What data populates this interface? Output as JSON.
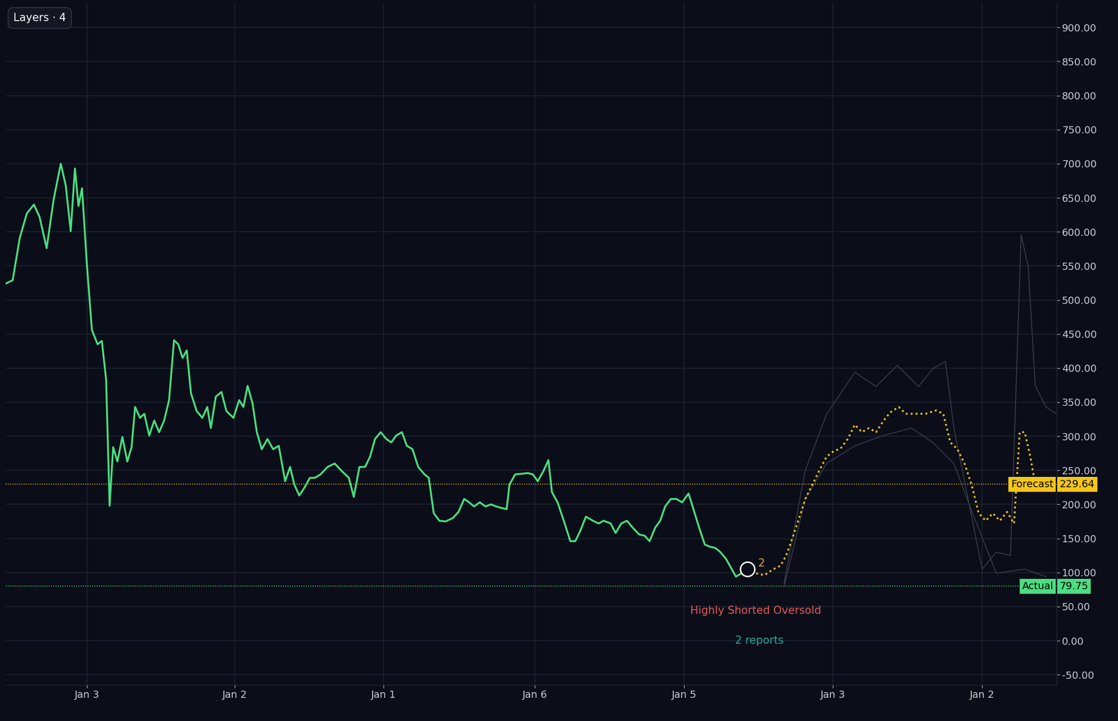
{
  "layers_button": "Layers · 4",
  "chart_data": {
    "type": "line",
    "grid": true,
    "xlim": [
      0,
      1485
    ],
    "xticks": [
      {
        "value": 115,
        "label": "Jan 3"
      },
      {
        "value": 324,
        "label": "Jan 2"
      },
      {
        "value": 534,
        "label": "Jan 1"
      },
      {
        "value": 748,
        "label": "Jan 6"
      },
      {
        "value": 959,
        "label": "Jan 5"
      },
      {
        "value": 1169,
        "label": "Jan 3"
      },
      {
        "value": 1380,
        "label": "Jan 2"
      }
    ],
    "ylim": [
      -65,
      935
    ],
    "yticks": [
      {
        "value": -50,
        "label": "-50.00"
      },
      {
        "value": 0,
        "label": "0.00"
      },
      {
        "value": 50,
        "label": "50.00"
      },
      {
        "value": 100,
        "label": "100.00"
      },
      {
        "value": 150,
        "label": "150.00"
      },
      {
        "value": 200,
        "label": "200.00"
      },
      {
        "value": 250,
        "label": "250.00"
      },
      {
        "value": 300,
        "label": "300.00"
      },
      {
        "value": 350,
        "label": "350.00"
      },
      {
        "value": 400,
        "label": "400.00"
      },
      {
        "value": 450,
        "label": "450.00"
      },
      {
        "value": 500,
        "label": "500.00"
      },
      {
        "value": 550,
        "label": "550.00"
      },
      {
        "value": 600,
        "label": "600.00"
      },
      {
        "value": 650,
        "label": "650.00"
      },
      {
        "value": 700,
        "label": "700.00"
      },
      {
        "value": 750,
        "label": "750.00"
      },
      {
        "value": 800,
        "label": "800.00"
      },
      {
        "value": 850,
        "label": "850.00"
      },
      {
        "value": 900,
        "label": "900.00"
      }
    ],
    "series": [
      {
        "color": "#3a3f4c",
        "line_style": "solid",
        "x": [
          1100,
          1130,
          1160,
          1200,
          1230,
          1260,
          1290,
          1310,
          1328,
          1340,
          1360,
          1380,
          1400,
          1420,
          1435,
          1445,
          1455,
          1470,
          1485
        ],
        "values": [
          84,
          250,
          332,
          394,
          373,
          404,
          373,
          399,
          410,
          312,
          208,
          105,
          130,
          125,
          596,
          549,
          374,
          343,
          333
        ]
      },
      {
        "color": "#3a3f4c",
        "line_style": "solid",
        "x": [
          1100,
          1130,
          1160,
          1200,
          1240,
          1280,
          1310,
          1340,
          1370,
          1400,
          1440,
          1470
        ],
        "values": [
          79,
          208,
          260,
          286,
          301,
          312,
          291,
          260,
          177,
          99,
          105,
          94
        ]
      },
      {
        "name": "Actual",
        "color": "#4ade80",
        "line_style": "solid",
        "x": [
          0,
          10,
          20,
          30,
          40,
          48,
          58,
          68,
          78,
          85,
          92,
          98,
          103,
          108,
          115,
          122,
          130,
          136,
          142,
          147,
          152,
          158,
          165,
          172,
          178,
          183,
          190,
          196,
          203,
          210,
          217,
          224,
          231,
          238,
          244,
          250,
          256,
          262,
          270,
          278,
          285,
          290,
          297,
          305,
          312,
          322,
          330,
          336,
          342,
          349,
          355,
          362,
          370,
          378,
          386,
          395,
          402,
          408,
          415,
          422,
          430,
          437,
          445,
          455,
          465,
          475,
          485,
          492,
          500,
          508,
          515,
          522,
          530,
          538,
          545,
          552,
          560,
          567,
          575,
          583,
          592,
          598,
          605,
          613,
          622,
          632,
          640,
          648,
          655,
          662,
          670,
          678,
          686,
          693,
          700,
          708,
          712,
          720,
          730,
          738,
          745,
          752,
          760,
          767,
          772,
          780,
          790,
          798,
          805,
          812,
          820,
          830,
          838,
          845,
          855,
          862,
          870,
          878,
          886,
          895,
          903,
          910,
          918,
          925,
          932,
          940,
          948,
          956,
          965,
          972,
          980,
          988,
          995,
          1003,
          1010,
          1018,
          1025,
          1032,
          1040,
          1048
        ],
        "values": [
          524,
          529,
          591,
          627,
          640,
          622,
          576,
          648,
          700,
          668,
          601,
          693,
          638,
          664,
          550,
          456,
          435,
          440,
          384,
          198,
          284,
          263,
          299,
          263,
          284,
          343,
          327,
          333,
          301,
          323,
          306,
          323,
          353,
          441,
          435,
          415,
          426,
          363,
          337,
          327,
          343,
          312,
          358,
          365,
          337,
          327,
          353,
          343,
          374,
          348,
          306,
          281,
          296,
          281,
          286,
          234,
          255,
          229,
          213,
          224,
          239,
          239,
          244,
          255,
          260,
          249,
          239,
          211,
          255,
          255,
          270,
          296,
          306,
          296,
          291,
          301,
          306,
          286,
          281,
          255,
          244,
          239,
          187,
          176,
          175,
          180,
          189,
          208,
          203,
          197,
          203,
          197,
          200,
          197,
          195,
          193,
          229,
          244,
          245,
          246,
          244,
          234,
          249,
          265,
          218,
          203,
          172,
          146,
          146,
          161,
          182,
          176,
          172,
          176,
          172,
          158,
          172,
          176,
          166,
          156,
          154,
          146,
          166,
          176,
          197,
          208,
          208,
          203,
          216,
          193,
          166,
          141,
          138,
          136,
          130,
          120,
          107,
          94,
          99,
          105
        ]
      },
      {
        "name": "Forecast",
        "color": "#f5c518",
        "line_style": "dotted",
        "x": [
          1048,
          1060,
          1072,
          1085,
          1095,
          1103,
          1112,
          1120,
          1130,
          1140,
          1150,
          1160,
          1170,
          1180,
          1190,
          1200,
          1210,
          1220,
          1230,
          1240,
          1250,
          1262,
          1272,
          1285,
          1300,
          1315,
          1325,
          1335,
          1345,
          1355,
          1365,
          1375,
          1385,
          1395,
          1405,
          1415,
          1425,
          1433,
          1440,
          1448,
          1455
        ],
        "values": [
          105,
          99,
          96,
          105,
          110,
          125,
          151,
          176,
          208,
          229,
          250,
          270,
          278,
          282,
          296,
          317,
          306,
          312,
          306,
          322,
          335,
          343,
          333,
          333,
          333,
          338,
          333,
          291,
          281,
          260,
          229,
          187,
          176,
          187,
          176,
          189,
          172,
          306,
          306,
          270,
          229
        ]
      }
    ],
    "reference_lines": [
      {
        "label": "Forecast",
        "value": 229.64,
        "color": "#f5c518"
      },
      {
        "label": "Actual",
        "value": 79.75,
        "color": "#4ade80"
      }
    ],
    "annotations": [
      {
        "text": "2",
        "color": "#e0a030"
      },
      {
        "text": "Highly Shorted Oversold",
        "color": "#e05a5a"
      },
      {
        "text": "2 reports",
        "color": "#26a69a"
      }
    ]
  }
}
